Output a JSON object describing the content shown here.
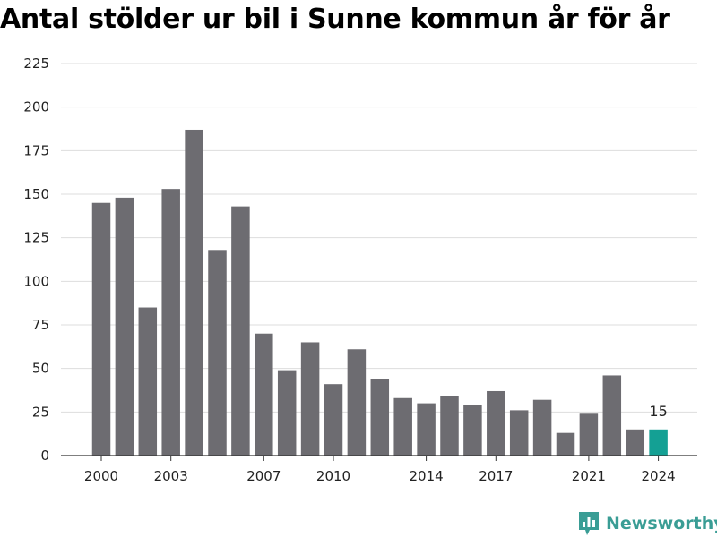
{
  "title": "Antal stölder ur bil i Sunne kommun år för år",
  "brand": {
    "name": "Newsworthy",
    "icon": "newsworthy-logo-icon",
    "color": "#3a9d95"
  },
  "chart_data": {
    "type": "bar",
    "title": "Antal stölder ur bil i Sunne kommun år för år",
    "xlabel": "",
    "ylabel": "",
    "categories": [
      2000,
      2001,
      2002,
      2003,
      2004,
      2005,
      2006,
      2007,
      2008,
      2009,
      2010,
      2011,
      2012,
      2013,
      2014,
      2015,
      2016,
      2017,
      2018,
      2019,
      2020,
      2021,
      2022,
      2023,
      2024
    ],
    "values": [
      145,
      148,
      85,
      153,
      187,
      118,
      143,
      70,
      49,
      65,
      41,
      61,
      44,
      33,
      30,
      34,
      29,
      37,
      26,
      32,
      13,
      24,
      46,
      15,
      15
    ],
    "x_tick_labels": [
      "2000",
      "2003",
      "2007",
      "2010",
      "2014",
      "2017",
      "2021",
      "2024"
    ],
    "y_ticks": [
      0,
      25,
      50,
      75,
      100,
      125,
      150,
      175,
      200,
      225
    ],
    "ylim": [
      0,
      225
    ],
    "grid": true,
    "highlight_index": 24,
    "data_labels": [
      {
        "index": 24,
        "text": "15"
      }
    ],
    "colors": {
      "bar": "#6d6c71",
      "highlight": "#14a094",
      "grid": "#dddddd",
      "axis": "#333333"
    }
  }
}
